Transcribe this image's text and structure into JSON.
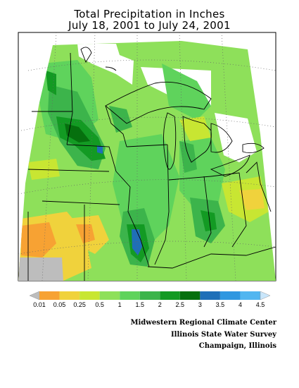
{
  "title_line1": "Total Precipitation in Inches",
  "title_line2": "July 18, 2001  to  July 24, 2001",
  "legend": {
    "labels": [
      "0.01",
      "0.05",
      "0.25",
      "0.5",
      "1",
      "1.5",
      "2",
      "2.5",
      "3",
      "3.5",
      "4",
      "4.5"
    ],
    "colors": [
      "#bdbdbd",
      "#f7a233",
      "#f0d23c",
      "#c8e632",
      "#8ee05a",
      "#5fd35c",
      "#3cb44b",
      "#139a23",
      "#06700e",
      "#1f6fb8",
      "#2f97e0",
      "#52b6f0",
      "#c9e6fb"
    ]
  },
  "credits": {
    "line1": "Midwestern Regional Climate Center",
    "line2": "Illinois State Water Survey",
    "line3": "Champaign, Illinois"
  },
  "regions": [
    {
      "name": "dry-southwest",
      "color": "#f7a233"
    },
    {
      "name": "moderate-southwest",
      "color": "#f0d23c"
    },
    {
      "name": "light-east",
      "color": "#c8e632"
    },
    {
      "name": "no-data-corner",
      "color": "#bdbdbd"
    }
  ]
}
